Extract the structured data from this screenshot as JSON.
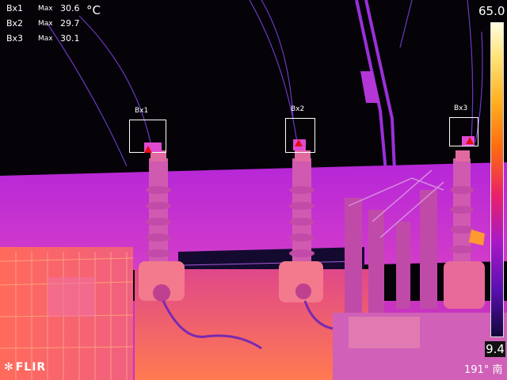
{
  "measurements": [
    {
      "id": "Bx1",
      "label": "Max",
      "value": "30.6"
    },
    {
      "id": "Bx2",
      "label": "Max",
      "value": "29.7"
    },
    {
      "id": "Bx3",
      "label": "Max",
      "value": "30.1"
    }
  ],
  "unit": "°C",
  "boxes": [
    {
      "label": "Bx1"
    },
    {
      "label": "Bx2"
    },
    {
      "label": "Bx3"
    }
  ],
  "scale": {
    "max": "65.0",
    "min": "9.4"
  },
  "brand": {
    "logo_text": "FLIR",
    "icon": "flir-snowflake-icon"
  },
  "compass": {
    "text": "191° 南",
    "icon": "compass-icon"
  },
  "colors": {
    "background": "#000000",
    "mid": "#a818c8",
    "hot": "#ff8a20",
    "marker": "#e01010"
  }
}
